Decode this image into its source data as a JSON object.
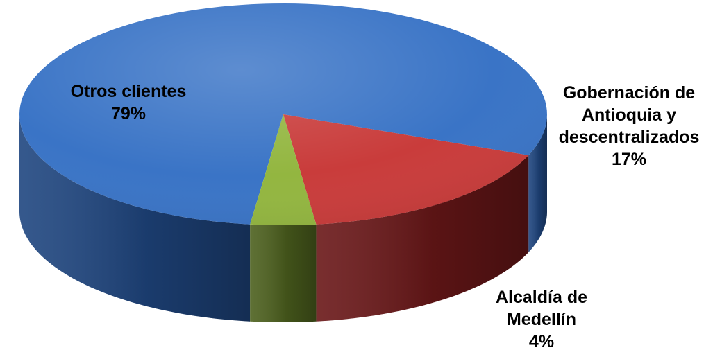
{
  "chart_data": {
    "type": "pie",
    "title": "",
    "series": [
      {
        "label_lines": [
          "Otros clientes"
        ],
        "percent_label": "79%",
        "value": 79,
        "color": "#3a74c6",
        "side_color": "#1f4680"
      },
      {
        "label_lines": [
          "Gobernación de",
          "Antioquia y",
          "descentralizados"
        ],
        "percent_label": "17%",
        "value": 17,
        "color": "#c93c3b",
        "side_color": "#6a1718"
      },
      {
        "label_lines": [
          "Alcaldía de",
          "Medellín"
        ],
        "percent_label": "4%",
        "value": 4,
        "color": "#93b640",
        "side_color": "#4d611e"
      }
    ]
  }
}
